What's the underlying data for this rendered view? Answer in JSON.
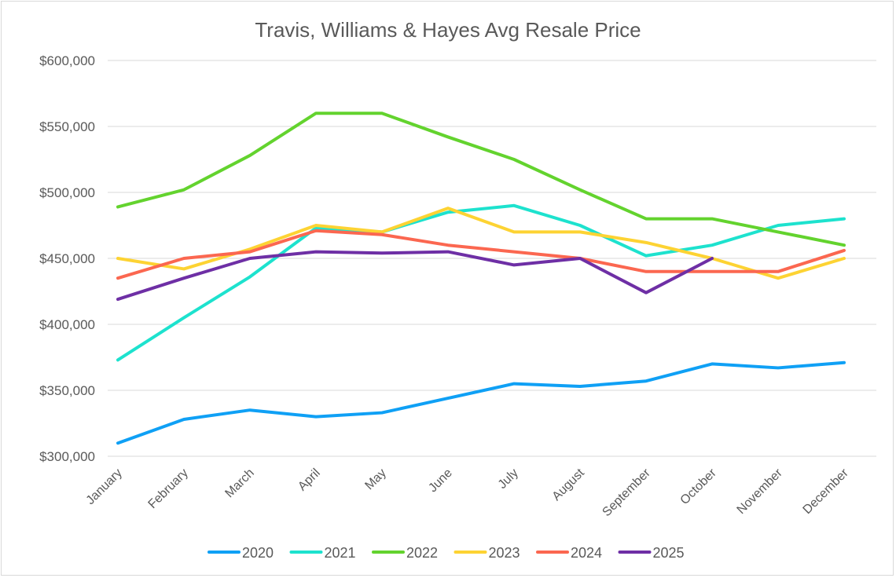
{
  "chart_data": {
    "type": "line",
    "title": "Travis, Williams & Hayes Avg Resale Price",
    "xlabel": "",
    "ylabel": "",
    "ylim": [
      300000,
      600000
    ],
    "yticks": [
      300000,
      350000,
      400000,
      450000,
      500000,
      550000,
      600000
    ],
    "ytick_labels": [
      "$300,000",
      "$350,000",
      "$400,000",
      "$450,000",
      "$500,000",
      "$550,000",
      "$600,000"
    ],
    "grid": true,
    "legend_position": "bottom",
    "categories": [
      "January",
      "February",
      "March",
      "April",
      "May",
      "June",
      "July",
      "August",
      "September",
      "October",
      "November",
      "December"
    ],
    "series": [
      {
        "name": "2020",
        "color": "#0FA0F5",
        "values": [
          310000,
          328000,
          335000,
          330000,
          333000,
          344000,
          355000,
          353000,
          357000,
          370000,
          367000,
          371000
        ]
      },
      {
        "name": "2021",
        "color": "#1DE2CE",
        "values": [
          373000,
          405000,
          436000,
          473000,
          470000,
          485000,
          490000,
          475000,
          452000,
          460000,
          475000,
          480000
        ]
      },
      {
        "name": "2022",
        "color": "#63D32E",
        "values": [
          489000,
          502000,
          528000,
          560000,
          560000,
          542000,
          525000,
          502000,
          480000,
          480000,
          470000,
          460000
        ]
      },
      {
        "name": "2023",
        "color": "#FDD333",
        "values": [
          450000,
          442000,
          457000,
          475000,
          470000,
          488000,
          470000,
          470000,
          462000,
          450000,
          435000,
          450000
        ]
      },
      {
        "name": "2024",
        "color": "#FB6750",
        "values": [
          435000,
          450000,
          455000,
          471000,
          468000,
          460000,
          455000,
          450000,
          440000,
          440000,
          440000,
          456000
        ]
      },
      {
        "name": "2025",
        "color": "#6E2FA5",
        "values": [
          419000,
          435000,
          450000,
          455000,
          454000,
          455000,
          445000,
          450000,
          424000,
          450000,
          null,
          null
        ]
      }
    ]
  }
}
